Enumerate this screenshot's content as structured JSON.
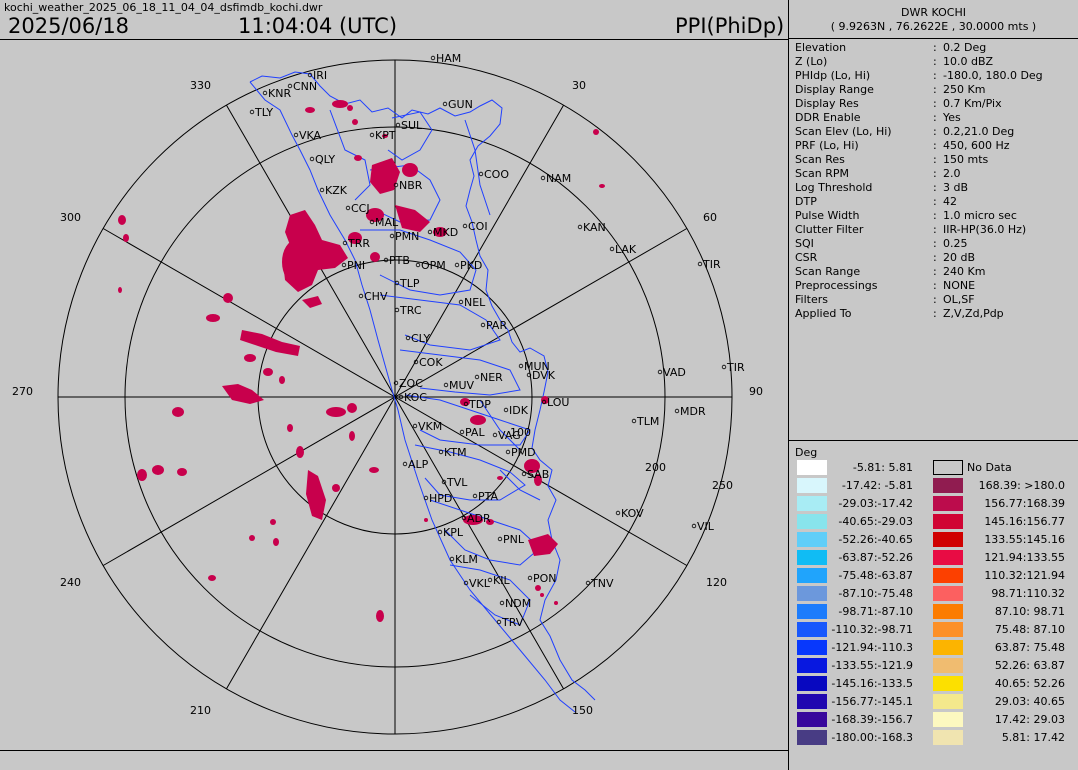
{
  "file_name": "kochi_weather_2025_06_18_11_04_04_dsfimdb_kochi.dwr",
  "date": "2025/06/18",
  "time": "11:04:04 (UTC)",
  "product": "PPI(PhiDp)",
  "station": {
    "name": "DWR KOCHI",
    "coords": "( 9.9263N , 76.2622E , 30.0000 mts )"
  },
  "params": [
    {
      "key": "Elevation",
      "value": "0.2 Deg"
    },
    {
      "key": "Z (Lo)",
      "value": "10.0 dBZ"
    },
    {
      "key": "PHIdp (Lo, Hi)",
      "value": "-180.0, 180.0 Deg"
    },
    {
      "key": "Display Range",
      "value": "250 Km"
    },
    {
      "key": "Display Res",
      "value": "0.7 Km/Pix"
    },
    {
      "key": "DDR Enable",
      "value": "Yes"
    },
    {
      "key": "Scan Elev (Lo, Hi)",
      "value": "0.2,21.0 Deg"
    },
    {
      "key": "PRF (Lo, Hi)",
      "value": "450, 600 Hz"
    },
    {
      "key": "Scan Res",
      "value": "150 mts"
    },
    {
      "key": "Scan RPM",
      "value": "2.0"
    },
    {
      "key": "Log Threshold",
      "value": "3 dB"
    },
    {
      "key": "DTP",
      "value": "42"
    },
    {
      "key": "Pulse Width",
      "value": "1.0 micro sec"
    },
    {
      "key": "Clutter Filter",
      "value": "IIR-HP(36.0 Hz)"
    },
    {
      "key": "SQI",
      "value": "0.25"
    },
    {
      "key": "CSR",
      "value": "20 dB"
    },
    {
      "key": "Scan Range",
      "value": "240 Km"
    },
    {
      "key": "Preprocessings",
      "value": "NONE"
    },
    {
      "key": "Filters",
      "value": "OL,SF"
    },
    {
      "key": "Applied To",
      "value": "Z,V,Zd,Pdp"
    }
  ],
  "legend": {
    "unit": "Deg",
    "no_data_label": "No Data",
    "no_data_color": "#c8c8c8",
    "left": [
      {
        "label": "-5.81:  5.81",
        "color": "#ffffff"
      },
      {
        "label": "-17.42: -5.81",
        "color": "#d8f6fc"
      },
      {
        "label": "-29.03:-17.42",
        "color": "#a8ecf4"
      },
      {
        "label": "-40.65:-29.03",
        "color": "#88e4ec"
      },
      {
        "label": "-52.26:-40.65",
        "color": "#60cef8"
      },
      {
        "label": "-63.87:-52.26",
        "color": "#10bcf4"
      },
      {
        "label": "-75.48:-63.87",
        "color": "#20a4fc"
      },
      {
        "label": "-87.10:-75.48",
        "color": "#6c98dc"
      },
      {
        "label": "-98.71:-87.10",
        "color": "#1c7cfc"
      },
      {
        "label": "-110.32:-98.71",
        "color": "#1858fc"
      },
      {
        "label": "-121.94:-110.3",
        "color": "#0838fc"
      },
      {
        "label": "-133.55:-121.9",
        "color": "#0818e0"
      },
      {
        "label": "-145.16:-133.5",
        "color": "#0808c0"
      },
      {
        "label": "-156.77:-145.1",
        "color": "#2008b0"
      },
      {
        "label": "-168.39:-156.7",
        "color": "#38089c"
      },
      {
        "label": "-180.00:-168.3",
        "color": "#483c84"
      }
    ],
    "right": [
      {
        "label": "168.39: >180.0",
        "color": "#901c50"
      },
      {
        "label": "156.77:168.39",
        "color": "#bc0c4c"
      },
      {
        "label": "145.16:156.77",
        "color": "#d00434"
      },
      {
        "label": "133.55:145.16",
        "color": "#d00000"
      },
      {
        "label": "121.94:133.55",
        "color": "#e80c44"
      },
      {
        "label": "110.32:121.94",
        "color": "#fc4000"
      },
      {
        "label": "98.71:110.32",
        "color": "#fc6060"
      },
      {
        "label": "87.10: 98.71",
        "color": "#fc7c00"
      },
      {
        "label": "75.48: 87.10",
        "color": "#fc9028"
      },
      {
        "label": "63.87: 75.48",
        "color": "#fcb400"
      },
      {
        "label": "52.26: 63.87",
        "color": "#f0bc70"
      },
      {
        "label": "40.65: 52.26",
        "color": "#fce000"
      },
      {
        "label": "29.03: 40.65",
        "color": "#f4e88c"
      },
      {
        "label": "17.42: 29.03",
        "color": "#fcf8c0"
      },
      {
        "label": "5.81: 17.42",
        "color": "#f0e4b0"
      }
    ]
  },
  "azimuth_labels": [
    "30",
    "60",
    "90",
    "120",
    "150",
    "210",
    "240",
    "270",
    "300",
    "330",
    "200",
    "250",
    "100"
  ],
  "places": [
    "HAM",
    "IRI",
    "CNN",
    "KNR",
    "TLY",
    "GUN",
    "SUL",
    "KPT",
    "VKA",
    "QLY",
    "COO",
    "NAM",
    "NBR",
    "KZK",
    "CCJ",
    "MAL",
    "MKD",
    "COI",
    "KAN",
    "TRR",
    "PMN",
    "PTB",
    "PNI",
    "OPM",
    "PKD",
    "LAK",
    "TIR",
    "TLP",
    "CHV",
    "NEL",
    "TRC",
    "PAR",
    "CLY",
    "COK",
    "MUN",
    "DVK",
    "VAD",
    "TIR",
    "ZOC",
    "MUV",
    "NER",
    "KOC",
    "LOU",
    "TDP",
    "IDK",
    "MDR",
    "TLM",
    "VKM",
    "PAL",
    "VAG",
    "KTM",
    "PMD",
    "ALP",
    "SAB",
    "TVL",
    "HPD",
    "PTA",
    "KOV",
    "VIL",
    "KPL",
    "ADR",
    "PNL",
    "KLM",
    "KIL",
    "VKL",
    "PON",
    "TNV",
    "NDM",
    "TRV"
  ],
  "echo_color": "#c8004c"
}
